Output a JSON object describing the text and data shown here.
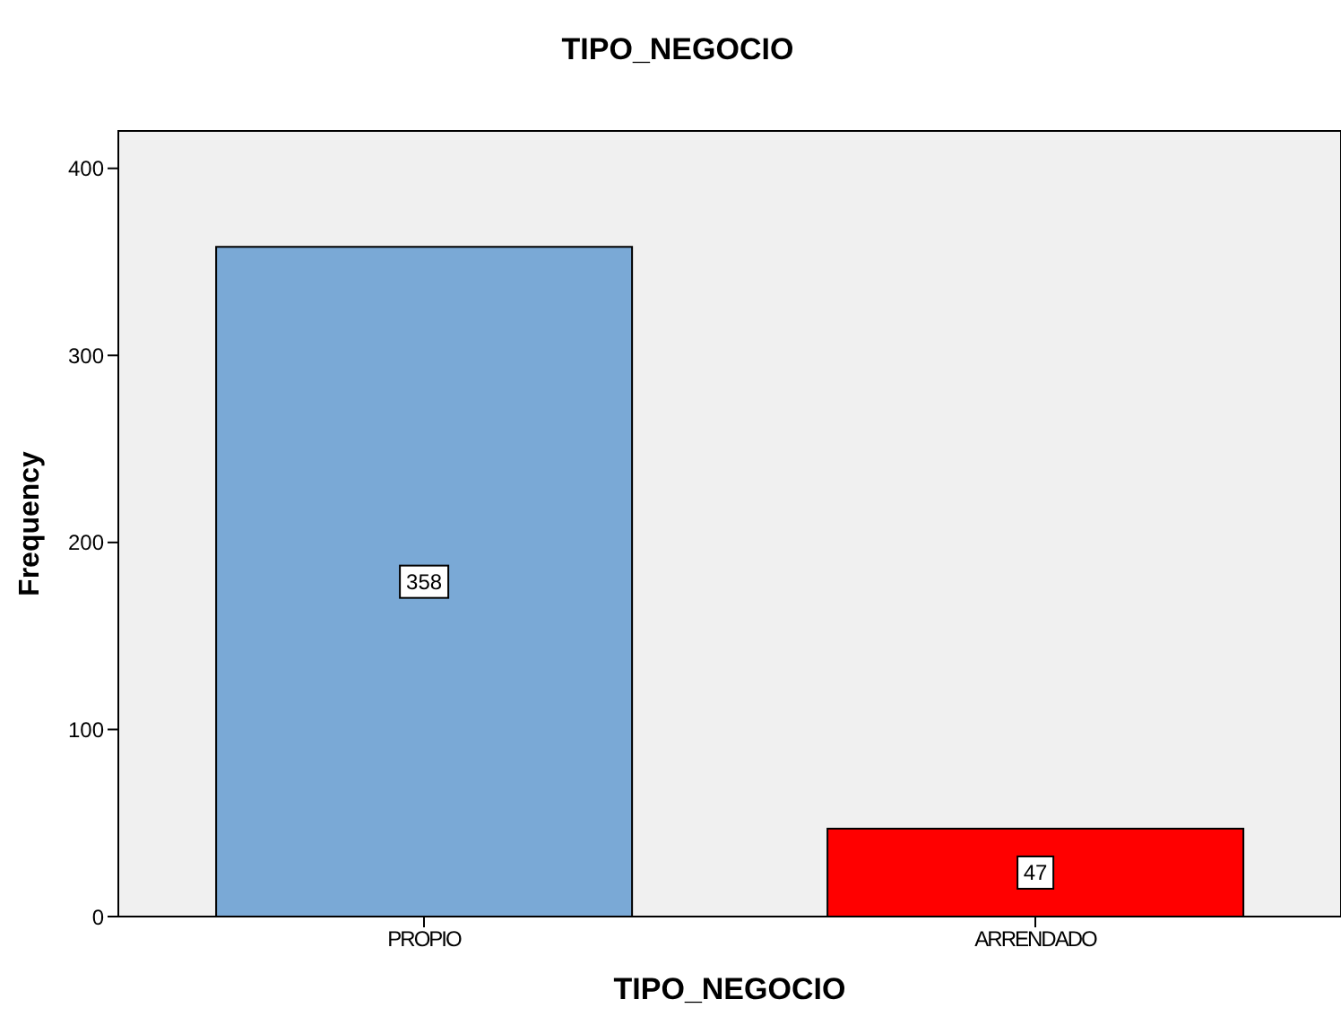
{
  "chart_data": {
    "type": "bar",
    "title": "TIPO_NEGOCIO",
    "xlabel": "TIPO_NEGOCIO",
    "ylabel": "Frequency",
    "categories": [
      "PROPIO",
      "ARRENDADO"
    ],
    "values": [
      358,
      47
    ],
    "colors": [
      "#7aa9d6",
      "#ff0000"
    ],
    "ylim": [
      0,
      420
    ],
    "yticks": [
      0,
      100,
      200,
      300,
      400
    ],
    "data_labels": true,
    "legend": false
  }
}
